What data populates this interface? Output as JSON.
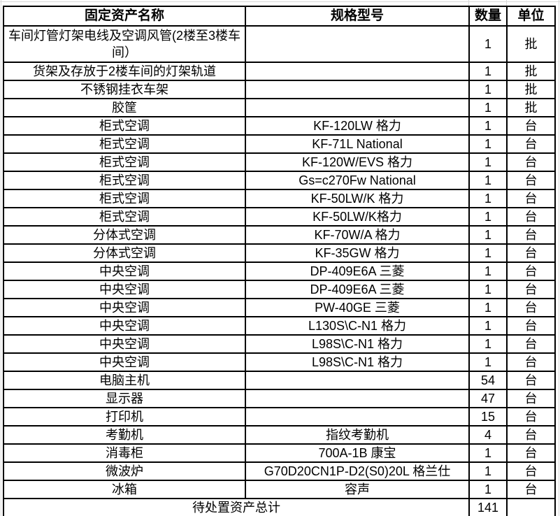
{
  "table": {
    "headers": {
      "name": "固定资产名称",
      "spec": "规格型号",
      "qty": "数量",
      "unit": "单位"
    },
    "rows": [
      {
        "name": "车间灯管灯架电线及空调风管(2楼至3楼车间）",
        "spec": "",
        "qty": "1",
        "unit": "批"
      },
      {
        "name": "货架及存放于2楼车间的灯架轨道",
        "spec": "",
        "qty": "1",
        "unit": "批"
      },
      {
        "name": "不锈钢挂衣车架",
        "spec": "",
        "qty": "1",
        "unit": "批"
      },
      {
        "name": "胶筐",
        "spec": "",
        "qty": "1",
        "unit": "批"
      },
      {
        "name": "柜式空调",
        "spec": "KF-120LW 格力",
        "qty": "1",
        "unit": "台"
      },
      {
        "name": "柜式空调",
        "spec": "KF-71L National",
        "qty": "1",
        "unit": "台"
      },
      {
        "name": "柜式空调",
        "spec": "KF-120W/EVS 格力",
        "qty": "1",
        "unit": "台"
      },
      {
        "name": "柜式空调",
        "spec": "Gs=c270Fw National",
        "qty": "1",
        "unit": "台"
      },
      {
        "name": "柜式空调",
        "spec": "KF-50LW/K 格力",
        "qty": "1",
        "unit": "台"
      },
      {
        "name": "柜式空调",
        "spec": "KF-50LW/K格力",
        "qty": "1",
        "unit": "台"
      },
      {
        "name": "分体式空调",
        "spec": "KF-70W/A 格力",
        "qty": "1",
        "unit": "台"
      },
      {
        "name": "分体式空调",
        "spec": "KF-35GW 格力",
        "qty": "1",
        "unit": "台"
      },
      {
        "name": "中央空调",
        "spec": "DP-409E6A 三菱",
        "qty": "1",
        "unit": "台"
      },
      {
        "name": "中央空调",
        "spec": "DP-409E6A 三菱",
        "qty": "1",
        "unit": "台"
      },
      {
        "name": "中央空调",
        "spec": "PW-40GE 三菱",
        "qty": "1",
        "unit": "台"
      },
      {
        "name": "中央空调",
        "spec": "L130S\\C-N1 格力",
        "qty": "1",
        "unit": "台"
      },
      {
        "name": "中央空调",
        "spec": "L98S\\C-N1 格力",
        "qty": "1",
        "unit": "台"
      },
      {
        "name": "中央空调",
        "spec": "L98S\\C-N1 格力",
        "qty": "1",
        "unit": "台"
      },
      {
        "name": "电脑主机",
        "spec": "",
        "qty": "54",
        "unit": "台"
      },
      {
        "name": "显示器",
        "spec": "",
        "qty": "47",
        "unit": "台"
      },
      {
        "name": "打印机",
        "spec": "",
        "qty": "15",
        "unit": "台"
      },
      {
        "name": "考勤机",
        "spec": "指纹考勤机",
        "qty": "4",
        "unit": "台"
      },
      {
        "name": "消毒柜",
        "spec": "700A-1B 康宝",
        "qty": "1",
        "unit": "台"
      },
      {
        "name": "微波炉",
        "spec": "G70D20CN1P-D2(S0)20L 格兰仕",
        "qty": "1",
        "unit": "台"
      },
      {
        "name": "冰箱",
        "spec": "容声",
        "qty": "1",
        "unit": "台"
      }
    ],
    "footer": {
      "label": "待处置资产总计",
      "qty": "141",
      "unit": ""
    }
  },
  "colors": {
    "border": "#000000",
    "gridline": "#d8d8d8",
    "text": "#000000",
    "background": "#ffffff"
  }
}
